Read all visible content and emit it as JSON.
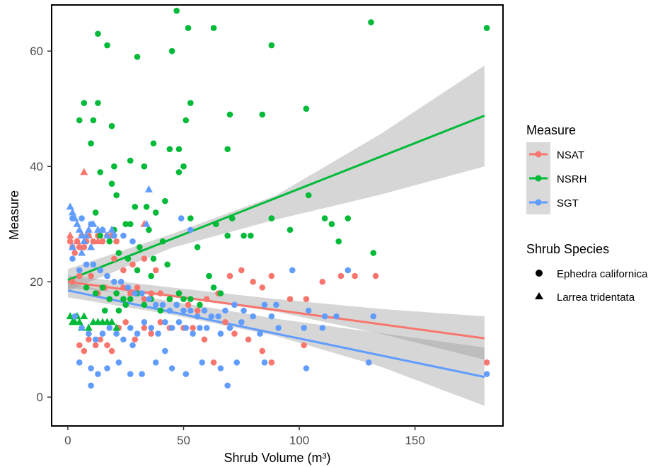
{
  "chart_data": {
    "type": "scatter",
    "xlabel": "Shrub Volume (m³)",
    "ylabel": "Measure",
    "xlim": [
      -7,
      188
    ],
    "ylim": [
      -5,
      68
    ],
    "xticks": [
      0,
      50,
      100,
      150
    ],
    "yticks": [
      0,
      20,
      40,
      60
    ],
    "grid": false,
    "legend_placement": "right",
    "legend": {
      "color_title": "Measure",
      "shape_title": "Shrub Species",
      "shapes": [
        {
          "label": "Ephedra californica",
          "shape": "circle"
        },
        {
          "label": "Larrea tridentata",
          "shape": "triangle"
        }
      ]
    },
    "series": [
      {
        "name": "NSAT",
        "color": "#F8766D",
        "fit": {
          "x0": 0,
          "y0": 20.0,
          "x1": 180,
          "y1": 10.2
        },
        "band": {
          "x": [
            0,
            45,
            90,
            135,
            180
          ],
          "lo": [
            18.9,
            17.4,
            14.8,
            11.0,
            6.5
          ],
          "hi": [
            21.1,
            19.0,
            17.0,
            15.3,
            14.0
          ]
        },
        "points": [
          [
            1,
            27
          ],
          [
            2,
            26
          ],
          [
            3,
            25
          ],
          [
            4,
            27
          ],
          [
            5,
            26
          ],
          [
            6,
            28
          ],
          [
            7,
            26
          ],
          [
            8,
            27
          ],
          [
            9,
            28
          ],
          [
            11,
            27
          ],
          [
            13,
            28
          ],
          [
            15,
            27
          ],
          [
            17,
            28
          ],
          [
            19,
            28
          ],
          [
            21,
            27
          ],
          [
            2,
            20
          ],
          [
            5,
            21
          ],
          [
            8,
            19
          ],
          [
            10,
            21
          ],
          [
            13,
            18
          ],
          [
            16,
            19
          ],
          [
            18,
            17
          ],
          [
            21,
            18
          ],
          [
            24,
            19
          ],
          [
            27,
            18
          ],
          [
            30,
            19
          ],
          [
            33,
            17
          ],
          [
            36,
            18
          ],
          [
            40,
            18
          ],
          [
            44,
            17
          ],
          [
            48,
            18
          ],
          [
            52,
            16
          ],
          [
            56,
            15
          ],
          [
            60,
            17
          ],
          [
            65,
            18
          ],
          [
            70,
            21
          ],
          [
            75,
            22
          ],
          [
            80,
            20
          ],
          [
            84,
            19
          ],
          [
            88,
            21
          ],
          [
            96,
            17
          ],
          [
            103,
            17
          ],
          [
            110,
            20
          ],
          [
            118,
            21
          ],
          [
            124,
            21
          ],
          [
            133,
            21
          ],
          [
            20,
            24
          ],
          [
            24,
            22
          ],
          [
            28,
            23
          ],
          [
            33,
            24
          ],
          [
            38,
            22
          ],
          [
            5,
            9
          ],
          [
            7,
            8
          ],
          [
            9,
            10
          ],
          [
            12,
            9
          ],
          [
            14,
            10
          ],
          [
            17,
            9
          ],
          [
            19,
            8
          ],
          [
            22,
            12
          ],
          [
            25,
            13
          ],
          [
            29,
            10
          ],
          [
            33,
            12
          ],
          [
            36,
            11
          ],
          [
            40,
            13
          ],
          [
            44,
            12
          ],
          [
            50,
            12
          ],
          [
            54,
            12
          ],
          [
            59,
            10
          ],
          [
            63,
            6
          ],
          [
            68,
            13
          ],
          [
            72,
            11
          ],
          [
            78,
            10
          ],
          [
            84,
            8
          ],
          [
            88,
            6
          ],
          [
            102,
            9
          ],
          [
            130,
            6
          ],
          [
            181,
            6
          ]
        ],
        "triangles": [
          [
            7,
            39
          ],
          [
            1,
            28
          ],
          [
            4,
            27
          ],
          [
            33,
            30
          ],
          [
            13,
            27
          ],
          [
            9,
            28
          ]
        ]
      },
      {
        "name": "NSRH",
        "color": "#00BA38",
        "fit": {
          "x0": 0,
          "y0": 20.3,
          "x1": 180,
          "y1": 48.8
        },
        "band": {
          "x": [
            0,
            45,
            90,
            135,
            180
          ],
          "lo": [
            18.4,
            25.9,
            30.8,
            35.1,
            40.0
          ],
          "hi": [
            22.2,
            28.3,
            35.0,
            45.6,
            57.5
          ]
        },
        "points": [
          [
            13,
            63
          ],
          [
            17,
            61
          ],
          [
            30,
            59
          ],
          [
            47,
            67
          ],
          [
            52,
            64
          ],
          [
            63,
            64
          ],
          [
            45,
            60
          ],
          [
            88,
            61
          ],
          [
            131,
            65
          ],
          [
            181,
            64
          ],
          [
            7,
            51
          ],
          [
            13,
            51
          ],
          [
            5,
            48
          ],
          [
            11,
            48
          ],
          [
            19,
            47
          ],
          [
            53,
            51
          ],
          [
            51,
            48
          ],
          [
            70,
            49
          ],
          [
            84,
            49
          ],
          [
            103,
            50
          ],
          [
            10,
            44
          ],
          [
            37,
            44
          ],
          [
            44,
            43
          ],
          [
            48,
            43
          ],
          [
            69,
            43
          ],
          [
            27,
            41
          ],
          [
            33,
            40
          ],
          [
            50,
            40
          ],
          [
            20,
            40
          ],
          [
            14,
            39
          ],
          [
            48,
            39
          ],
          [
            19,
            37
          ],
          [
            21,
            35
          ],
          [
            42,
            34
          ],
          [
            104,
            35
          ],
          [
            12,
            32
          ],
          [
            25,
            30
          ],
          [
            29,
            33
          ],
          [
            34,
            33
          ],
          [
            38,
            32
          ],
          [
            53,
            31
          ],
          [
            64,
            30
          ],
          [
            71,
            31
          ],
          [
            79,
            28
          ],
          [
            88,
            31
          ],
          [
            96,
            29
          ],
          [
            111,
            31
          ],
          [
            114,
            30
          ],
          [
            117,
            27
          ],
          [
            121,
            31
          ],
          [
            132,
            25
          ],
          [
            20,
            29
          ],
          [
            27,
            30
          ],
          [
            35,
            29
          ],
          [
            41,
            27
          ],
          [
            56,
            26
          ],
          [
            69,
            28
          ],
          [
            76,
            28
          ],
          [
            14,
            28
          ],
          [
            18,
            27
          ],
          [
            22,
            25
          ],
          [
            26,
            24
          ],
          [
            31,
            26
          ],
          [
            37,
            24
          ],
          [
            43,
            23
          ],
          [
            30,
            22
          ],
          [
            36,
            21
          ],
          [
            8,
            19
          ],
          [
            12,
            18
          ],
          [
            15,
            19
          ],
          [
            18,
            17
          ],
          [
            21,
            18
          ],
          [
            24,
            17
          ],
          [
            27,
            17
          ],
          [
            30,
            18
          ],
          [
            33,
            16
          ],
          [
            36,
            17
          ],
          [
            40,
            15
          ],
          [
            44,
            17
          ],
          [
            48,
            18
          ],
          [
            50,
            17
          ],
          [
            53,
            17
          ],
          [
            57,
            16
          ],
          [
            61,
            21
          ],
          [
            63,
            19
          ],
          [
            66,
            18
          ],
          [
            25,
            16
          ],
          [
            22,
            15
          ],
          [
            16,
            15
          ],
          [
            47,
            16
          ]
        ],
        "triangles": [
          [
            1,
            14
          ],
          [
            2,
            13
          ],
          [
            3,
            13
          ],
          [
            4,
            14
          ],
          [
            5,
            13
          ],
          [
            6,
            12
          ],
          [
            7,
            14
          ],
          [
            9,
            12
          ],
          [
            11,
            13
          ],
          [
            13,
            13
          ],
          [
            15,
            13
          ],
          [
            17,
            13
          ],
          [
            19,
            13
          ],
          [
            21,
            12
          ]
        ]
      },
      {
        "name": "SGT",
        "color": "#619CFF",
        "fit": {
          "x0": 0,
          "y0": 18.5,
          "x1": 180,
          "y1": 3.5
        },
        "band": {
          "x": [
            0,
            45,
            90,
            135,
            180
          ],
          "lo": [
            17.3,
            14.3,
            10.6,
            5.3,
            -1.5
          ],
          "hi": [
            19.7,
            16.6,
            13.6,
            11.1,
            8.6
          ]
        },
        "points": [
          [
            2,
            31
          ],
          [
            6,
            31
          ],
          [
            10,
            30
          ],
          [
            15,
            29
          ],
          [
            20,
            28
          ],
          [
            24,
            28
          ],
          [
            28,
            27
          ],
          [
            49,
            31
          ],
          [
            53,
            29
          ],
          [
            2,
            24
          ],
          [
            5,
            22
          ],
          [
            8,
            23
          ],
          [
            11,
            23
          ],
          [
            14,
            22
          ],
          [
            17,
            21
          ],
          [
            20,
            20
          ],
          [
            23,
            20
          ],
          [
            26,
            19
          ],
          [
            29,
            18
          ],
          [
            32,
            18
          ],
          [
            35,
            17
          ],
          [
            38,
            16
          ],
          [
            41,
            16
          ],
          [
            44,
            15
          ],
          [
            47,
            16
          ],
          [
            50,
            15
          ],
          [
            53,
            15
          ],
          [
            56,
            14
          ],
          [
            59,
            15
          ],
          [
            62,
            14
          ],
          [
            65,
            14
          ],
          [
            68,
            15
          ],
          [
            72,
            16
          ],
          [
            76,
            15
          ],
          [
            80,
            14
          ],
          [
            85,
            16
          ],
          [
            88,
            14
          ],
          [
            90,
            16
          ],
          [
            97,
            22
          ],
          [
            104,
            15
          ],
          [
            111,
            14
          ],
          [
            116,
            14
          ],
          [
            121,
            22
          ],
          [
            132,
            14
          ],
          [
            3,
            14
          ],
          [
            6,
            12
          ],
          [
            9,
            11
          ],
          [
            12,
            10
          ],
          [
            15,
            11
          ],
          [
            18,
            12
          ],
          [
            21,
            11
          ],
          [
            24,
            10
          ],
          [
            27,
            12
          ],
          [
            30,
            11
          ],
          [
            33,
            13
          ],
          [
            36,
            12
          ],
          [
            39,
            11
          ],
          [
            42,
            13
          ],
          [
            45,
            12
          ],
          [
            48,
            13
          ],
          [
            51,
            12
          ],
          [
            54,
            11
          ],
          [
            57,
            12
          ],
          [
            60,
            12
          ],
          [
            66,
            11
          ],
          [
            70,
            12
          ],
          [
            75,
            13
          ],
          [
            83,
            11
          ],
          [
            91,
            12
          ],
          [
            102,
            12
          ],
          [
            110,
            12
          ],
          [
            5,
            6
          ],
          [
            10,
            5
          ],
          [
            13,
            4
          ],
          [
            17,
            5
          ],
          [
            22,
            6
          ],
          [
            27,
            4
          ],
          [
            32,
            4
          ],
          [
            38,
            6
          ],
          [
            45,
            5
          ],
          [
            51,
            4
          ],
          [
            58,
            6
          ],
          [
            66,
            5
          ],
          [
            73,
            6
          ],
          [
            85,
            6
          ],
          [
            103,
            5
          ],
          [
            130,
            6
          ],
          [
            181,
            4
          ],
          [
            10,
            2
          ],
          [
            69,
            2
          ],
          [
            28,
            9
          ],
          [
            42,
            8
          ]
        ],
        "triangles": [
          [
            1,
            33
          ],
          [
            2,
            32
          ],
          [
            3,
            31
          ],
          [
            4,
            30
          ],
          [
            5,
            29
          ],
          [
            6,
            28
          ],
          [
            7,
            27
          ],
          [
            8,
            28
          ],
          [
            9,
            29
          ],
          [
            11,
            30
          ],
          [
            13,
            29
          ],
          [
            15,
            29
          ],
          [
            17,
            28
          ],
          [
            19,
            29
          ],
          [
            35,
            36
          ],
          [
            34,
            30
          ],
          [
            2,
            26
          ],
          [
            6,
            25
          ],
          [
            10,
            26
          ]
        ]
      }
    ]
  }
}
